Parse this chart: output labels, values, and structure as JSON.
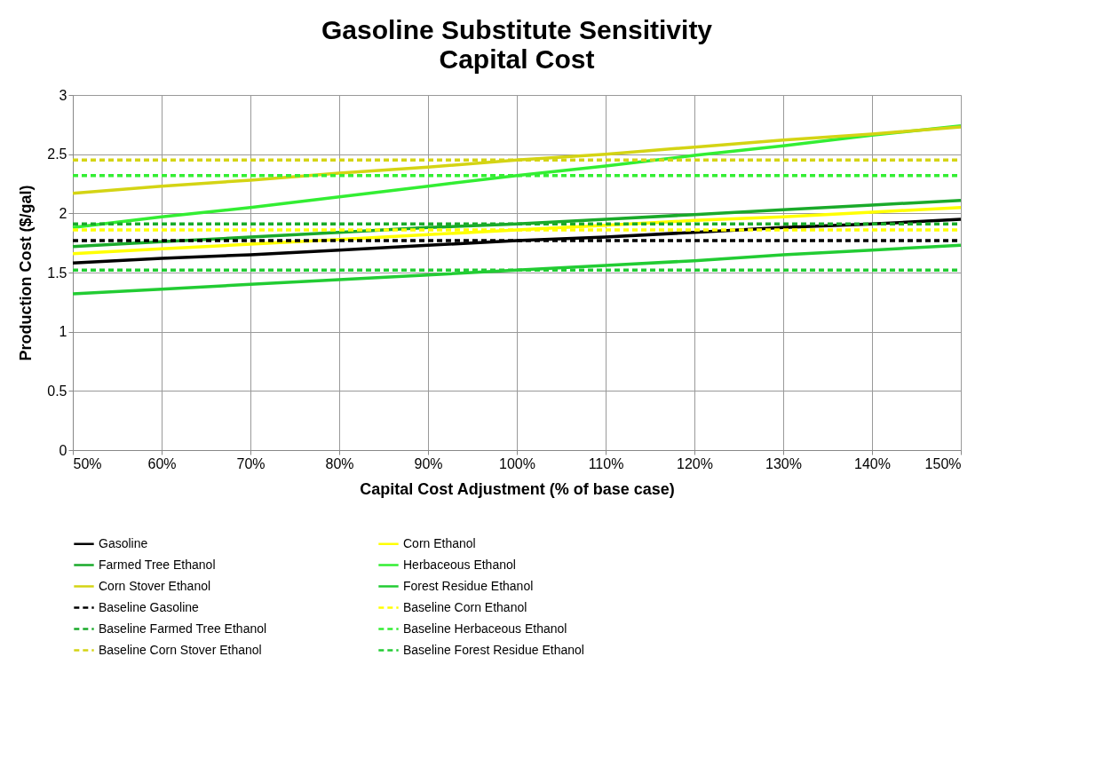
{
  "chart_data": {
    "type": "line",
    "title": "Gasoline Substitute Sensitivity",
    "subtitle": "Capital Cost",
    "xlabel": "Capital Cost Adjustment (% of base case)",
    "ylabel": "Production Cost ($/gal)",
    "x": [
      50,
      60,
      70,
      80,
      90,
      100,
      110,
      120,
      130,
      140,
      150
    ],
    "xlim": [
      50,
      150
    ],
    "xticks": [
      {
        "value": 50,
        "label": "50%"
      },
      {
        "value": 60,
        "label": "60%"
      },
      {
        "value": 70,
        "label": "70%"
      },
      {
        "value": 80,
        "label": "80%"
      },
      {
        "value": 90,
        "label": "90%"
      },
      {
        "value": 100,
        "label": "100%"
      },
      {
        "value": 110,
        "label": "110%"
      },
      {
        "value": 120,
        "label": "120%"
      },
      {
        "value": 130,
        "label": "130%"
      },
      {
        "value": 140,
        "label": "140%"
      },
      {
        "value": 150,
        "label": "150%"
      }
    ],
    "ylim": [
      0,
      3
    ],
    "yticks": [
      0,
      0.5,
      1,
      1.5,
      2,
      2.5,
      3
    ],
    "grid": true,
    "legend": "bottom",
    "marker": "none",
    "series": [
      {
        "name": "Gasoline",
        "color": "#000000",
        "line_style": "solid",
        "values": [
          1.58,
          1.62,
          1.65,
          1.69,
          1.73,
          1.77,
          1.8,
          1.84,
          1.88,
          1.91,
          1.95
        ]
      },
      {
        "name": "Corn Ethanol",
        "color": "#ffff00",
        "line_style": "solid",
        "values": [
          1.66,
          1.7,
          1.74,
          1.78,
          1.82,
          1.86,
          1.9,
          1.94,
          1.97,
          2.01,
          2.05
        ]
      },
      {
        "name": "Farmed Tree Ethanol",
        "color": "#1aaa2a",
        "line_style": "solid",
        "values": [
          1.72,
          1.76,
          1.8,
          1.84,
          1.88,
          1.91,
          1.95,
          1.99,
          2.03,
          2.07,
          2.11
        ]
      },
      {
        "name": "Herbaceous Ethanol",
        "color": "#33ee33",
        "line_style": "solid",
        "values": [
          1.88,
          1.97,
          2.05,
          2.14,
          2.23,
          2.32,
          2.4,
          2.49,
          2.57,
          2.66,
          2.74
        ]
      },
      {
        "name": "Corn Stover Ethanol",
        "color": "#d4d414",
        "line_style": "solid",
        "values": [
          2.17,
          2.23,
          2.28,
          2.34,
          2.39,
          2.45,
          2.5,
          2.56,
          2.62,
          2.67,
          2.73
        ]
      },
      {
        "name": "Forest Residue Ethanol",
        "color": "#22cc33",
        "line_style": "solid",
        "values": [
          1.32,
          1.36,
          1.4,
          1.44,
          1.48,
          1.52,
          1.56,
          1.6,
          1.65,
          1.69,
          1.73
        ]
      },
      {
        "name": "Baseline Gasoline",
        "color": "#000000",
        "line_style": "dashed",
        "values": [
          1.77,
          1.77,
          1.77,
          1.77,
          1.77,
          1.77,
          1.77,
          1.77,
          1.77,
          1.77,
          1.77
        ]
      },
      {
        "name": "Baseline Corn Ethanol",
        "color": "#ffff00",
        "line_style": "dashed",
        "values": [
          1.86,
          1.86,
          1.86,
          1.86,
          1.86,
          1.86,
          1.86,
          1.86,
          1.86,
          1.86,
          1.86
        ]
      },
      {
        "name": "Baseline Farmed Tree Ethanol",
        "color": "#1aaa2a",
        "line_style": "dashed",
        "values": [
          1.91,
          1.91,
          1.91,
          1.91,
          1.91,
          1.91,
          1.91,
          1.91,
          1.91,
          1.91,
          1.91
        ]
      },
      {
        "name": "Baseline Herbaceous Ethanol",
        "color": "#33ee33",
        "line_style": "dashed",
        "values": [
          2.32,
          2.32,
          2.32,
          2.32,
          2.32,
          2.32,
          2.32,
          2.32,
          2.32,
          2.32,
          2.32
        ]
      },
      {
        "name": "Baseline Corn Stover Ethanol",
        "color": "#d4d414",
        "line_style": "dashed",
        "values": [
          2.45,
          2.45,
          2.45,
          2.45,
          2.45,
          2.45,
          2.45,
          2.45,
          2.45,
          2.45,
          2.45
        ]
      },
      {
        "name": "Baseline Forest Residue Ethanol",
        "color": "#22cc33",
        "line_style": "dashed",
        "values": [
          1.52,
          1.52,
          1.52,
          1.52,
          1.52,
          1.52,
          1.52,
          1.52,
          1.52,
          1.52,
          1.52
        ]
      }
    ]
  }
}
